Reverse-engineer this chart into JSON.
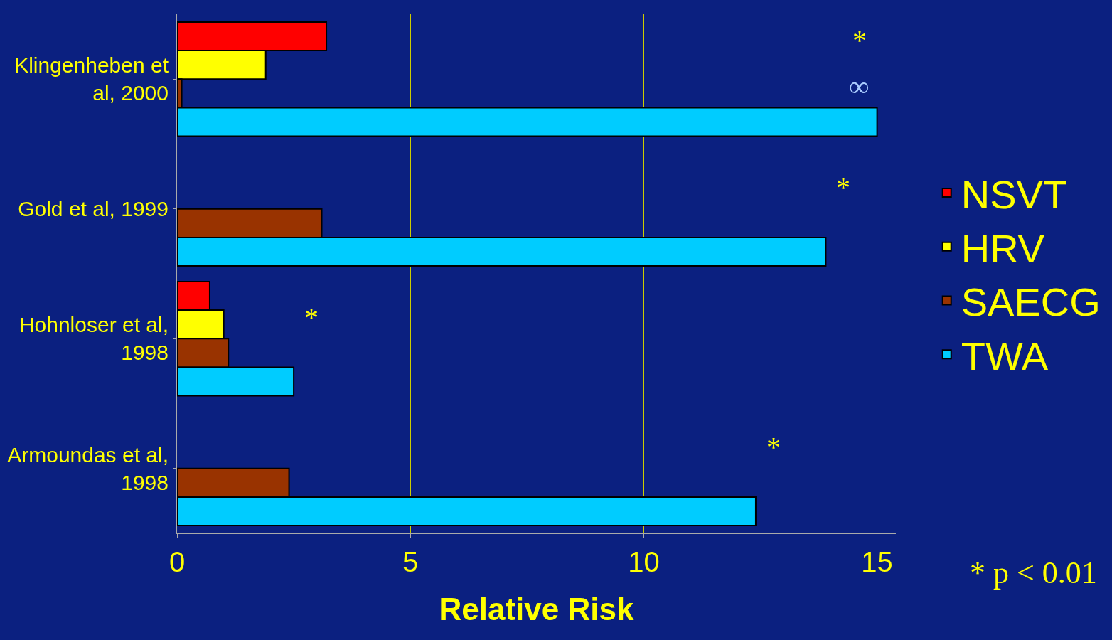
{
  "chart_data": {
    "type": "bar",
    "orientation": "horizontal",
    "xlabel": "Relative Risk",
    "categories": [
      "Klingenheben et al, 2000",
      "Gold et al, 1999",
      "Hohnloser et al, 1998",
      "Armoundas et al, 1998"
    ],
    "series": [
      {
        "name": "NSVT",
        "color": "#ff0000",
        "values": [
          3.2,
          null,
          0.7,
          null
        ]
      },
      {
        "name": "HRV",
        "color": "#ffff00",
        "values": [
          1.9,
          null,
          1.0,
          null
        ]
      },
      {
        "name": "SAECG",
        "color": "#993300",
        "values": [
          0.1,
          3.1,
          1.1,
          2.4
        ]
      },
      {
        "name": "TWA",
        "color": "#00ccff",
        "values": [
          15,
          13.9,
          2.5,
          12.4
        ]
      }
    ],
    "xlim": [
      0,
      15.4
    ],
    "xticks": [
      0,
      5,
      10,
      15
    ],
    "grid": "x",
    "legend": "right",
    "annotations": [
      "*",
      "∞",
      "*",
      "*",
      "*",
      "* p < 0.01"
    ]
  }
}
